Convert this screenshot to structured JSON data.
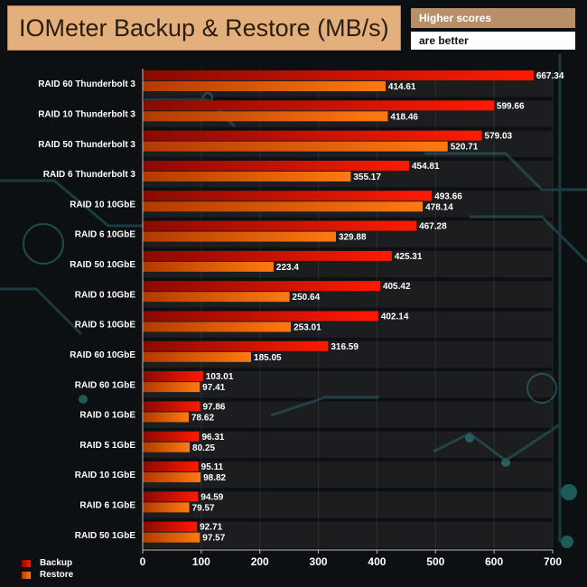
{
  "header": {
    "title": "IOMeter Backup & Restore (MB/s)",
    "note_line1": "Higher scores",
    "note_line2": "are better"
  },
  "colors": {
    "backup": "#ee1a00",
    "restore": "#ff6a00",
    "title_bg": "#e3b07d",
    "background": "#0d1012"
  },
  "chart_data": {
    "type": "bar",
    "orientation": "horizontal",
    "title": "IOMeter Backup & Restore (MB/s)",
    "xlim": [
      0,
      700
    ],
    "xticks": [
      0,
      100,
      200,
      300,
      400,
      500,
      600,
      700
    ],
    "legend_position": "bottom-left",
    "categories": [
      "RAID 60 Thunderbolt 3",
      "RAID 10 Thunderbolt 3",
      "RAID 50 Thunderbolt 3",
      "RAID 6 Thunderbolt 3",
      "RAID 10 10GbE",
      "RAID 6 10GbE",
      "RAID 50 10GbE",
      "RAID 0 10GbE",
      "RAID 5 10GbE",
      "RAID 60 10GbE",
      "RAID 60 1GbE",
      "RAID 0 1GbE",
      "RAID 5 1GbE",
      "RAID 10 1GbE",
      "RAID 6 1GbE",
      "RAID 50 1GbE"
    ],
    "series": [
      {
        "name": "Backup",
        "values": [
          667.34,
          599.66,
          579.03,
          454.81,
          493.66,
          467.28,
          425.31,
          405.42,
          402.14,
          316.59,
          103.01,
          97.86,
          96.31,
          95.11,
          94.59,
          92.71
        ],
        "labels": [
          "667.34",
          "599.66",
          "579.03",
          "454.81",
          "493.66",
          "467.28",
          "425.31",
          "405.42",
          "402.14",
          "316.59",
          "103.01",
          "97.86",
          "96.31",
          "95.11",
          "94.59",
          "92.71"
        ]
      },
      {
        "name": "Restore",
        "values": [
          414.61,
          418.46,
          520.71,
          355.17,
          478.14,
          329.88,
          223.4,
          250.64,
          253.01,
          185.05,
          97.41,
          78.62,
          80.25,
          98.82,
          79.57,
          97.57
        ],
        "labels": [
          "414.61",
          "418.46",
          "520.71",
          "355.17",
          "478.14",
          "329.88",
          "223.4",
          "250.64",
          "253.01",
          "185.05",
          "97.41",
          "78.62",
          "80.25",
          "98.82",
          "79.57",
          "97.57"
        ]
      }
    ]
  }
}
